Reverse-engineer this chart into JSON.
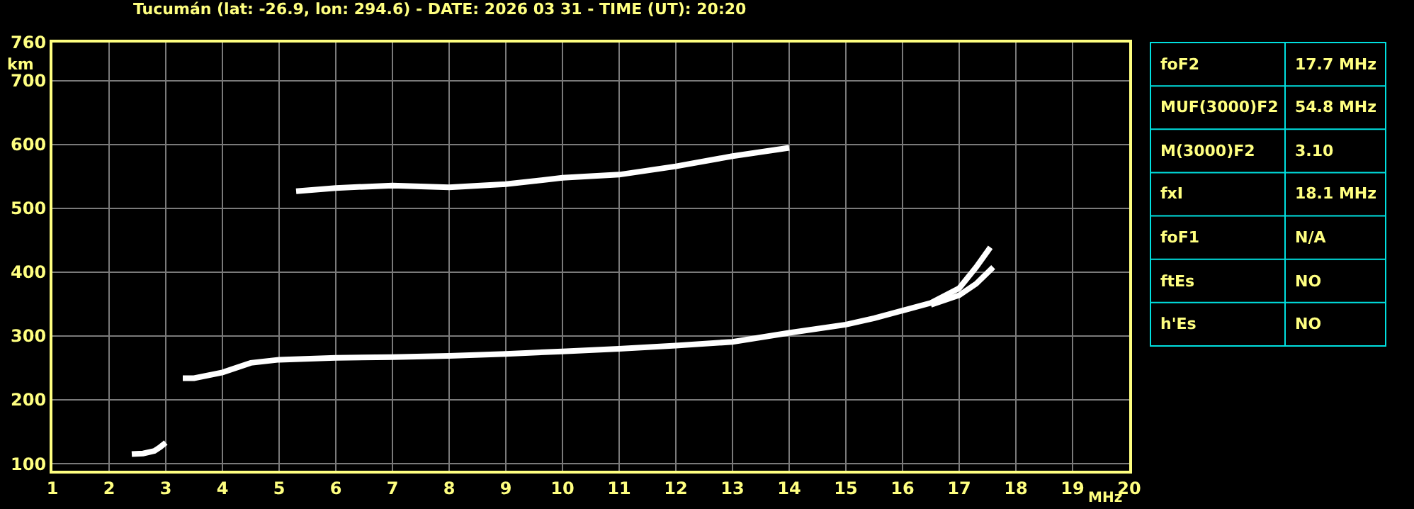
{
  "chart_data": [
    {
      "type": "line",
      "title": "Tucumán (lat: -26.9, lon: 294.6) - DATE: 2026 03 31 - TIME (UT): 20:20",
      "xlabel": "MHz",
      "ylabel": "km",
      "xlim": [
        1,
        20
      ],
      "xticks": [
        1,
        2,
        3,
        4,
        5,
        6,
        7,
        8,
        9,
        10,
        11,
        12,
        13,
        14,
        15,
        16,
        17,
        18,
        19,
        20
      ],
      "ylim": [
        89,
        760
      ],
      "yticks": [
        100,
        200,
        300,
        400,
        500,
        600,
        700,
        760
      ],
      "grid": true,
      "marker": "none",
      "line_style": "solid",
      "series": [
        {
          "color": "#ffffff",
          "x": [
            2.4,
            2.6,
            2.8,
            2.9,
            3.0
          ],
          "values": [
            115,
            116,
            120,
            126,
            133
          ]
        },
        {
          "color": "#ffffff",
          "x": [
            3.3,
            3.5,
            4.0,
            4.5,
            5.0,
            6.0,
            7.0,
            8.0,
            9.0,
            10.0,
            11.0,
            12.0,
            13.0,
            14.0,
            15.0,
            15.5,
            16.0,
            16.5,
            17.0,
            17.3,
            17.55
          ],
          "values": [
            234,
            234,
            243,
            258,
            263,
            266,
            267,
            269,
            272,
            276,
            280,
            285,
            291,
            305,
            318,
            328,
            340,
            352,
            375,
            408,
            439
          ]
        },
        {
          "color": "#ffffff",
          "x": [
            16.5,
            17.0,
            17.3,
            17.6
          ],
          "values": [
            349,
            364,
            382,
            408
          ]
        },
        {
          "color": "#ffffff",
          "x": [
            5.3,
            6.0,
            7.0,
            8.0,
            9.0,
            10.0,
            11.0,
            12.0,
            13.0,
            14.0
          ],
          "values": [
            527,
            532,
            536,
            533,
            538,
            548,
            553,
            566,
            582,
            595
          ]
        }
      ]
    },
    {
      "type": "other",
      "annotations": [
        "foF2",
        "17.7 MHz",
        "MUF(3000)F2",
        "54.8 MHz",
        "M(3000)F2",
        "3.10",
        "fxI",
        "18.1 MHz",
        "foF1",
        "N/A",
        "ftEs",
        "NO",
        "h'Es",
        "NO"
      ]
    }
  ]
}
